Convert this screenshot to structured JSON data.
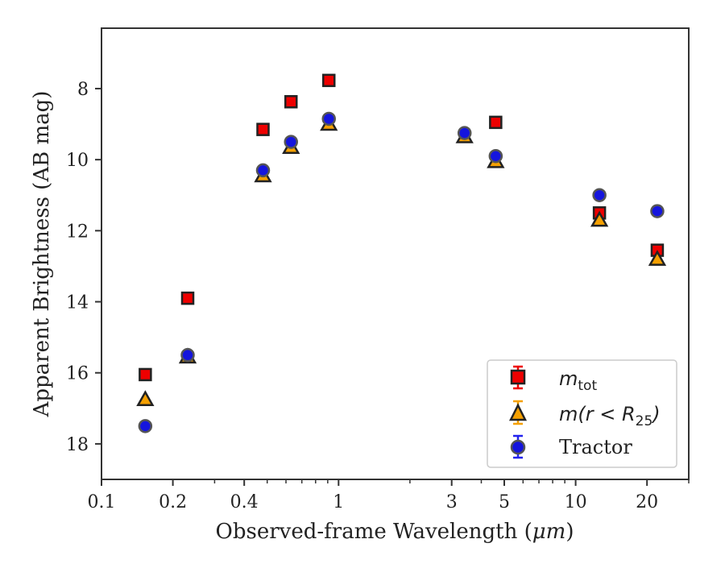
{
  "chart_data": {
    "type": "scatter",
    "xlabel_prefix": "Observed-frame Wavelength (",
    "xlabel_unit": "μm",
    "xlabel_suffix": ")",
    "ylabel": "Apparent Brightness (AB mag)",
    "x_scale": "log",
    "xlim": [
      0.1,
      30
    ],
    "ylim": [
      19,
      6.3
    ],
    "y_inverted": true,
    "grid": false,
    "x_ticks": [
      0.1,
      0.2,
      0.4,
      1,
      3,
      5,
      10,
      20
    ],
    "x_tick_labels": [
      "0.1",
      "0.2",
      "0.4",
      "1",
      "3",
      "5",
      "10",
      "20"
    ],
    "y_ticks": [
      8,
      10,
      12,
      14,
      16,
      18
    ],
    "y_tick_labels": [
      "8",
      "10",
      "12",
      "14",
      "16",
      "18"
    ],
    "legend_position": "lower-right",
    "series": [
      {
        "name": "m_tot",
        "legend_main": "m",
        "legend_sub": "tot",
        "marker": "square",
        "fill": "#ee0000",
        "edge": "#222222",
        "errcolor": "#ee0000",
        "points": [
          {
            "x": 0.153,
            "y": 16.05
          },
          {
            "x": 0.231,
            "y": 13.9
          },
          {
            "x": 0.48,
            "y": 9.15
          },
          {
            "x": 0.63,
            "y": 8.37
          },
          {
            "x": 0.91,
            "y": 7.77
          },
          {
            "x": 4.6,
            "y": 8.95
          },
          {
            "x": 12.6,
            "y": 11.5
          },
          {
            "x": 22.1,
            "y": 12.55
          }
        ]
      },
      {
        "name": "m(r < R25)",
        "legend_main": "m(r < R",
        "legend_sub": "25",
        "legend_tail": ")",
        "marker": "triangle",
        "fill": "#f5a000",
        "edge": "#222222",
        "errcolor": "#f5a000",
        "points": [
          {
            "x": 0.153,
            "y": 16.75
          },
          {
            "x": 0.231,
            "y": 15.55
          },
          {
            "x": 0.48,
            "y": 10.45
          },
          {
            "x": 0.63,
            "y": 9.65
          },
          {
            "x": 0.91,
            "y": 9.0
          },
          {
            "x": 3.4,
            "y": 9.35
          },
          {
            "x": 4.6,
            "y": 10.05
          },
          {
            "x": 12.6,
            "y": 11.7
          },
          {
            "x": 22.1,
            "y": 12.8
          }
        ]
      },
      {
        "name": "Tractor",
        "legend_main": "Tractor",
        "marker": "circle",
        "fill": "#1515dd",
        "edge": "#555555",
        "errcolor": "#2222ee",
        "points": [
          {
            "x": 0.153,
            "y": 17.5
          },
          {
            "x": 0.231,
            "y": 15.5
          },
          {
            "x": 0.48,
            "y": 10.3
          },
          {
            "x": 0.63,
            "y": 9.5
          },
          {
            "x": 0.91,
            "y": 8.85
          },
          {
            "x": 3.4,
            "y": 9.25
          },
          {
            "x": 4.6,
            "y": 9.9
          },
          {
            "x": 12.6,
            "y": 11.0
          },
          {
            "x": 22.1,
            "y": 11.45
          }
        ]
      }
    ]
  }
}
